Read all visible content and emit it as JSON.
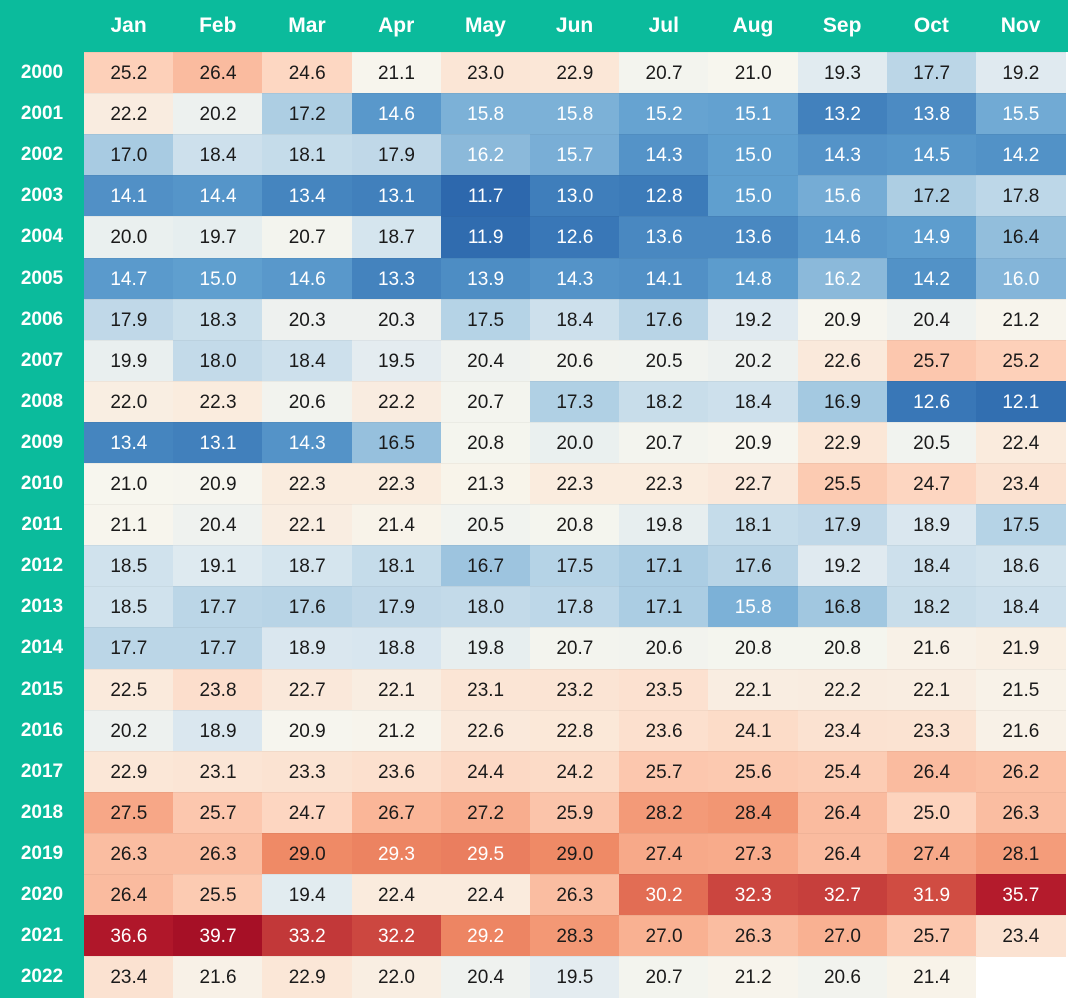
{
  "chart_data": {
    "type": "heatmap",
    "title": "",
    "colorscale": {
      "low": "#2a65ab",
      "mid": "#f7f6ee",
      "high": "#a50f26"
    },
    "header_color": "#0bbb9c",
    "columns": [
      "Jan",
      "Feb",
      "Mar",
      "Apr",
      "May",
      "Jun",
      "Jul",
      "Aug",
      "Sep",
      "Oct",
      "Nov"
    ],
    "rows": [
      "2000",
      "2001",
      "2002",
      "2003",
      "2004",
      "2005",
      "2006",
      "2007",
      "2008",
      "2009",
      "2010",
      "2011",
      "2012",
      "2013",
      "2014",
      "2015",
      "2016",
      "2017",
      "2018",
      "2019",
      "2020",
      "2021",
      "2022"
    ],
    "values": [
      [
        25.2,
        26.4,
        24.6,
        21.1,
        23.0,
        22.9,
        20.7,
        21.0,
        19.3,
        17.7,
        19.2
      ],
      [
        22.2,
        20.2,
        17.2,
        14.6,
        15.8,
        15.8,
        15.2,
        15.1,
        13.2,
        13.8,
        15.5
      ],
      [
        17.0,
        18.4,
        18.1,
        17.9,
        16.2,
        15.7,
        14.3,
        15.0,
        14.3,
        14.5,
        14.2
      ],
      [
        14.1,
        14.4,
        13.4,
        13.1,
        11.7,
        13.0,
        12.8,
        15.0,
        15.6,
        17.2,
        17.8
      ],
      [
        20.0,
        19.7,
        20.7,
        18.7,
        11.9,
        12.6,
        13.6,
        13.6,
        14.6,
        14.9,
        16.4
      ],
      [
        14.7,
        15.0,
        14.6,
        13.3,
        13.9,
        14.3,
        14.1,
        14.8,
        16.2,
        14.2,
        16.0
      ],
      [
        17.9,
        18.3,
        20.3,
        20.3,
        17.5,
        18.4,
        17.6,
        19.2,
        20.9,
        20.4,
        21.2
      ],
      [
        19.9,
        18.0,
        18.4,
        19.5,
        20.4,
        20.6,
        20.5,
        20.2,
        22.6,
        25.7,
        25.2
      ],
      [
        22.0,
        22.3,
        20.6,
        22.2,
        20.7,
        17.3,
        18.2,
        18.4,
        16.9,
        12.6,
        12.1
      ],
      [
        13.4,
        13.1,
        14.3,
        16.5,
        20.8,
        20.0,
        20.7,
        20.9,
        22.9,
        20.5,
        22.4
      ],
      [
        21.0,
        20.9,
        22.3,
        22.3,
        21.3,
        22.3,
        22.3,
        22.7,
        25.5,
        24.7,
        23.4
      ],
      [
        21.1,
        20.4,
        22.1,
        21.4,
        20.5,
        20.8,
        19.8,
        18.1,
        17.9,
        18.9,
        17.5
      ],
      [
        18.5,
        19.1,
        18.7,
        18.1,
        16.7,
        17.5,
        17.1,
        17.6,
        19.2,
        18.4,
        18.6
      ],
      [
        18.5,
        17.7,
        17.6,
        17.9,
        18.0,
        17.8,
        17.1,
        15.8,
        16.8,
        18.2,
        18.4
      ],
      [
        17.7,
        17.7,
        18.9,
        18.8,
        19.8,
        20.7,
        20.6,
        20.8,
        20.8,
        21.6,
        21.9
      ],
      [
        22.5,
        23.8,
        22.7,
        22.1,
        23.1,
        23.2,
        23.5,
        22.1,
        22.2,
        22.1,
        21.5
      ],
      [
        20.2,
        18.9,
        20.9,
        21.2,
        22.6,
        22.8,
        23.6,
        24.1,
        23.4,
        23.3,
        21.6
      ],
      [
        22.9,
        23.1,
        23.3,
        23.6,
        24.4,
        24.2,
        25.7,
        25.6,
        25.4,
        26.4,
        26.2
      ],
      [
        27.5,
        25.7,
        24.7,
        26.7,
        27.2,
        25.9,
        28.2,
        28.4,
        26.4,
        25.0,
        26.3
      ],
      [
        26.3,
        26.3,
        29.0,
        29.3,
        29.5,
        29.0,
        27.4,
        27.3,
        26.4,
        27.4,
        28.1
      ],
      [
        26.4,
        25.5,
        19.4,
        22.4,
        22.4,
        26.3,
        30.2,
        32.3,
        32.7,
        31.9,
        35.7
      ],
      [
        36.6,
        39.7,
        33.2,
        32.2,
        29.2,
        28.3,
        27.0,
        26.3,
        27.0,
        25.7,
        23.4
      ],
      [
        23.4,
        21.6,
        22.9,
        22.0,
        20.4,
        19.5,
        20.7,
        21.2,
        20.6,
        21.4,
        null
      ]
    ]
  }
}
